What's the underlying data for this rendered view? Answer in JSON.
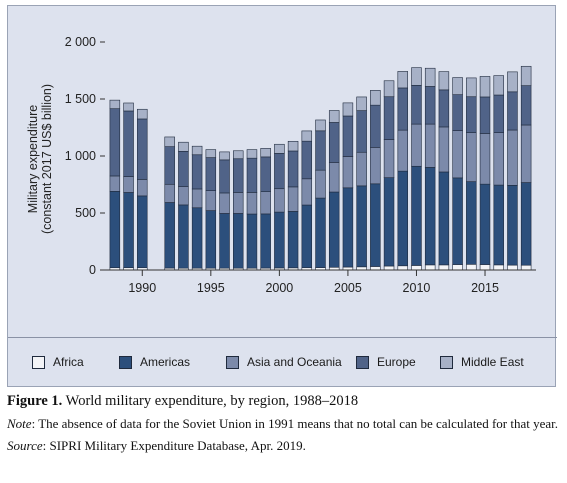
{
  "chart_data": {
    "type": "bar",
    "stacked": true,
    "ylabel_line1": "Military expenditure",
    "ylabel_line2": "(constant 2017 US$ billion)",
    "ylim": [
      0,
      2000
    ],
    "yticks": [
      0,
      500,
      1000,
      1500,
      2000
    ],
    "ytick_labels": [
      "0",
      "500",
      "1 000",
      "1 500",
      "2 000"
    ],
    "xticks": [
      1990,
      1995,
      2000,
      2005,
      2010,
      2015
    ],
    "xtick_labels": [
      "1990",
      "1995",
      "2000",
      "2005",
      "2010",
      "2015"
    ],
    "x": [
      1988,
      1989,
      1990,
      1991,
      1992,
      1993,
      1994,
      1995,
      1996,
      1997,
      1998,
      1999,
      2000,
      2001,
      2002,
      2003,
      2004,
      2005,
      2006,
      2007,
      2008,
      2009,
      2010,
      2011,
      2012,
      2013,
      2014,
      2015,
      2016,
      2017,
      2018
    ],
    "series": [
      {
        "name": "Africa",
        "color": "#f3f4f7",
        "values": [
          20,
          20,
          20,
          null,
          17,
          16,
          16,
          16,
          16,
          16,
          16,
          17,
          18,
          19,
          20,
          21,
          24,
          26,
          28,
          31,
          35,
          37,
          40,
          45,
          45,
          48,
          50,
          48,
          45,
          43,
          42
        ]
      },
      {
        "name": "Americas",
        "color": "#2c4f7c",
        "values": [
          670,
          660,
          630,
          null,
          575,
          555,
          530,
          505,
          480,
          480,
          475,
          475,
          490,
          495,
          550,
          610,
          660,
          695,
          710,
          725,
          775,
          830,
          870,
          855,
          815,
          760,
          725,
          705,
          700,
          700,
          725
        ]
      },
      {
        "name": "Asia and Oceania",
        "color": "#7c8aaa",
        "values": [
          135,
          140,
          145,
          null,
          160,
          160,
          165,
          175,
          180,
          185,
          190,
          195,
          205,
          215,
          230,
          245,
          260,
          275,
          295,
          320,
          335,
          360,
          370,
          380,
          395,
          415,
          430,
          445,
          460,
          485,
          505
        ]
      },
      {
        "name": "Europe",
        "color": "#506388",
        "values": [
          590,
          575,
          530,
          null,
          330,
          310,
          300,
          290,
          290,
          295,
          300,
          305,
          310,
          315,
          330,
          345,
          350,
          355,
          365,
          370,
          375,
          370,
          340,
          330,
          325,
          315,
          315,
          320,
          330,
          335,
          345
        ]
      },
      {
        "name": "Middle East",
        "color": "#a7b1c7",
        "values": [
          75,
          70,
          85,
          null,
          85,
          80,
          75,
          70,
          70,
          70,
          75,
          75,
          80,
          85,
          90,
          95,
          105,
          115,
          120,
          130,
          140,
          145,
          155,
          160,
          160,
          150,
          165,
          180,
          170,
          175,
          170
        ]
      }
    ]
  },
  "caption": {
    "label": "Figure 1.",
    "title": " World military expenditure, by region, 1988–2018",
    "note_label": "Note",
    "note_text": ": The absence of data for the Soviet Union in 1991 means that no total can be calculated for that year.",
    "source_label": "Source",
    "source_text": ": SIPRI Military Expenditure Database, Apr. 2019."
  }
}
